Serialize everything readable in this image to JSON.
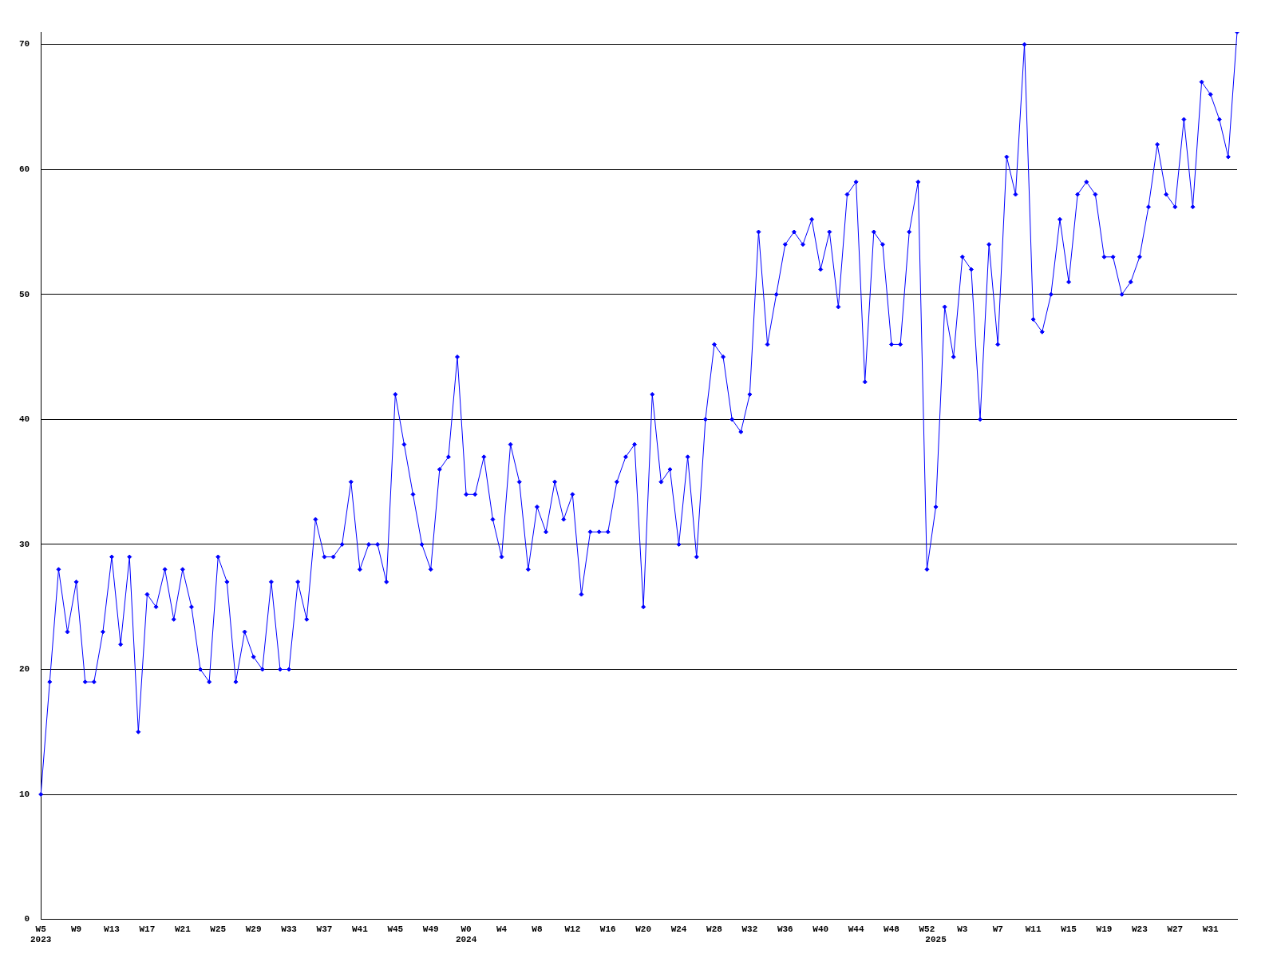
{
  "chart_data": {
    "type": "line",
    "categories": [
      "W5\n2023",
      null,
      null,
      null,
      "W9",
      null,
      null,
      null,
      "W13",
      null,
      null,
      null,
      "W17",
      null,
      null,
      null,
      "W21",
      null,
      null,
      null,
      "W25",
      null,
      null,
      null,
      "W29",
      null,
      null,
      null,
      "W33",
      null,
      null,
      null,
      "W37",
      null,
      null,
      null,
      "W41",
      null,
      null,
      null,
      "W45",
      null,
      null,
      null,
      "W49",
      null,
      null,
      null,
      "W0\n2024",
      null,
      null,
      null,
      "W4",
      null,
      null,
      null,
      "W8",
      null,
      null,
      null,
      "W12",
      null,
      null,
      null,
      "W16",
      null,
      null,
      null,
      "W20",
      null,
      null,
      null,
      "W24",
      null,
      null,
      null,
      "W28",
      null,
      null,
      null,
      "W32",
      null,
      null,
      null,
      "W36",
      null,
      null,
      null,
      "W40",
      null,
      null,
      null,
      "W44",
      null,
      null,
      null,
      "W48",
      null,
      null,
      null,
      "W52",
      "\n2025",
      null,
      null,
      "W3",
      null,
      null,
      null,
      "W7",
      null,
      null,
      null,
      "W11",
      null,
      null,
      null,
      "W15",
      null,
      null,
      null,
      "W19",
      null,
      null,
      null,
      "W23",
      null,
      null,
      null,
      "W27",
      null,
      null,
      null,
      "W31",
      null,
      null,
      null
    ],
    "series": [
      {
        "color": "#0000ff",
        "values": [
          10,
          19,
          28,
          23,
          27,
          19,
          19,
          23,
          29,
          22,
          29,
          15,
          26,
          25,
          28,
          24,
          28,
          25,
          20,
          19,
          29,
          27,
          19,
          23,
          21,
          20,
          27,
          20,
          20,
          27,
          24,
          32,
          29,
          29,
          30,
          35,
          28,
          30,
          30,
          27,
          42,
          38,
          34,
          30,
          28,
          36,
          37,
          45,
          34,
          34,
          37,
          32,
          29,
          38,
          35,
          28,
          33,
          31,
          35,
          32,
          34,
          26,
          31,
          31,
          31,
          35,
          37,
          38,
          25,
          42,
          35,
          36,
          30,
          37,
          29,
          40,
          46,
          45,
          40,
          39,
          42,
          55,
          46,
          50,
          54,
          55,
          54,
          56,
          52,
          55,
          49,
          58,
          59,
          43,
          55,
          54,
          46,
          46,
          55,
          59,
          28,
          33,
          49,
          45,
          53,
          52,
          40,
          54,
          46,
          61,
          58,
          70,
          48,
          47,
          50,
          56,
          51,
          58,
          59,
          58,
          53,
          53,
          50,
          51,
          53,
          57,
          62,
          58,
          57,
          64,
          57,
          67,
          66,
          64,
          61,
          71
        ]
      }
    ],
    "ylim": [
      0,
      71
    ],
    "yticks": [
      0,
      10,
      20,
      30,
      40,
      50,
      60,
      70
    ],
    "grid": "y",
    "legend": false,
    "marker": "diamond",
    "line_style": "solid"
  }
}
